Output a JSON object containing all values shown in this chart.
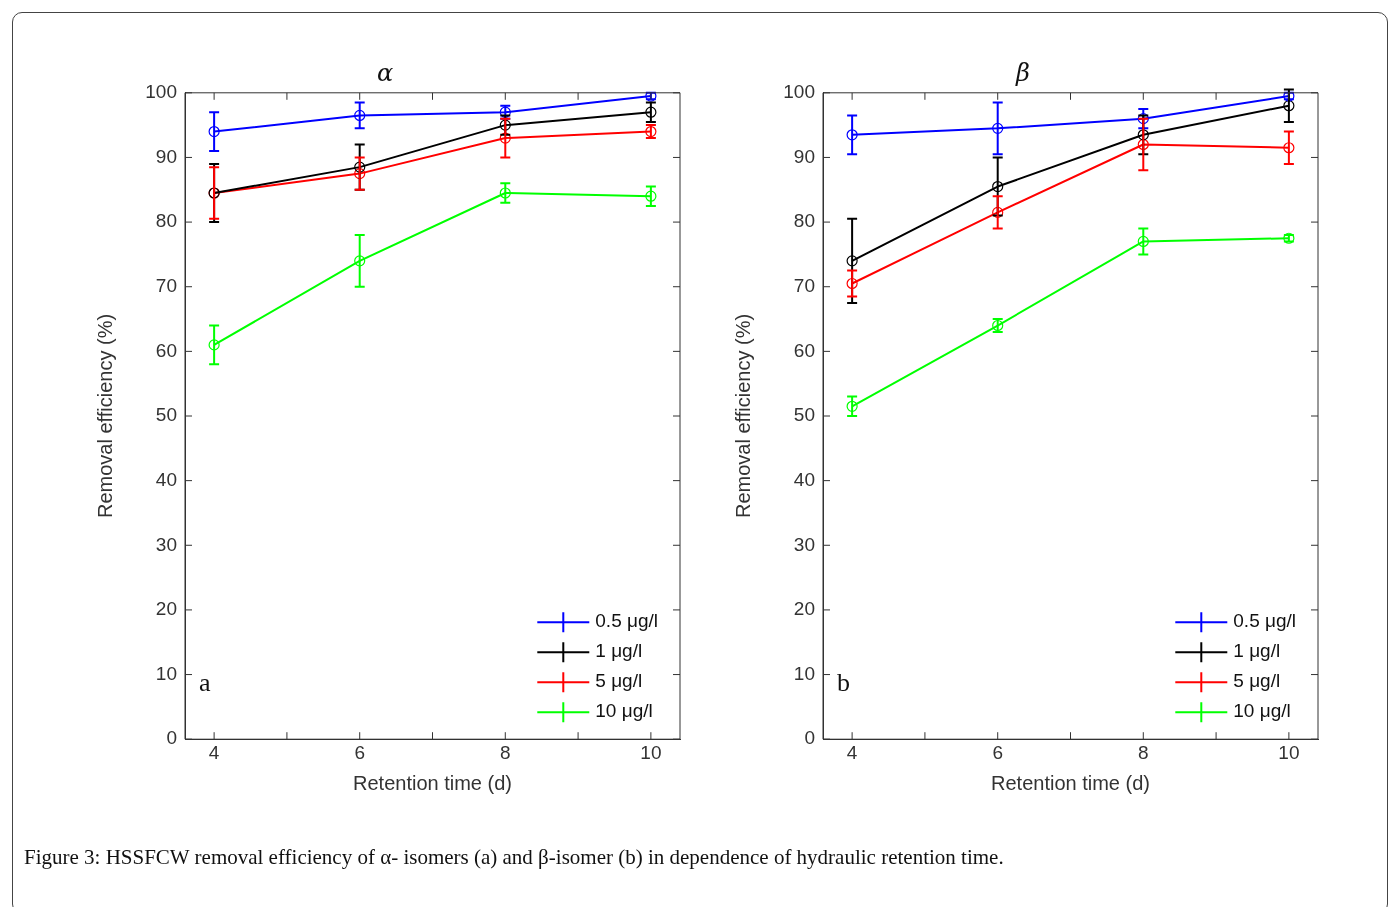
{
  "chart_data": [
    {
      "type": "line",
      "title": "α",
      "xlabel": "Retention time (d)",
      "ylabel": "Removal efficiency (%)",
      "x": [
        4,
        6,
        8,
        10
      ],
      "xlim": [
        3.6,
        10.4
      ],
      "xticks": [
        4,
        {
          "value": 5,
          "label": null
        },
        6,
        {
          "value": 7,
          "label": null
        },
        8,
        {
          "value": 9,
          "label": null
        },
        10
      ],
      "ylim": [
        0,
        100
      ],
      "yticks": [
        0,
        10,
        20,
        30,
        40,
        50,
        60,
        70,
        80,
        90,
        100
      ],
      "grid": false,
      "legend": "bottom right",
      "marker": "circle",
      "line_style": "solid",
      "series": [
        {
          "name": "0.5 μg/l",
          "color": "#0000ff",
          "values": [
            94,
            96.5,
            97,
            99.5
          ],
          "errors": [
            3,
            2,
            1,
            0.5
          ]
        },
        {
          "name": "1 μg/l",
          "color": "#000000",
          "values": [
            84.5,
            88.5,
            95,
            97
          ],
          "errors": [
            4.5,
            3.5,
            1.5,
            1.5
          ]
        },
        {
          "name": "5 μg/l",
          "color": "#ff0000",
          "values": [
            84.5,
            87.5,
            93,
            94
          ],
          "errors": [
            4,
            2.5,
            3,
            1
          ]
        },
        {
          "name": "10 μg/l",
          "color": "#00ff00",
          "values": [
            61,
            74,
            84.5,
            84
          ],
          "errors": [
            3,
            4,
            1.5,
            1.5
          ]
        }
      ],
      "annotations": [
        "a"
      ]
    },
    {
      "type": "line",
      "title": "β",
      "xlabel": "Retention time (d)",
      "ylabel": "Removal efficiency (%)",
      "x": [
        4,
        6,
        8,
        10
      ],
      "xlim": [
        3.6,
        10.4
      ],
      "xticks": [
        4,
        {
          "value": 5,
          "label": null
        },
        6,
        {
          "value": 7,
          "label": null
        },
        8,
        {
          "value": 9,
          "label": null
        },
        10
      ],
      "ylim": [
        0,
        100
      ],
      "yticks": [
        0,
        10,
        20,
        30,
        40,
        50,
        60,
        70,
        80,
        90,
        100
      ],
      "grid": false,
      "legend": "bottom right",
      "marker": "circle",
      "line_style": "solid",
      "series": [
        {
          "name": "0.5 μg/l",
          "color": "#0000ff",
          "values": [
            93.5,
            94.5,
            96,
            99.5
          ],
          "errors": [
            3,
            4,
            1.5,
            0.5
          ]
        },
        {
          "name": "1 μg/l",
          "color": "#000000",
          "values": [
            74,
            85.5,
            93.5,
            98
          ],
          "errors": [
            6.5,
            4.5,
            3,
            2.5
          ]
        },
        {
          "name": "5 μg/l",
          "color": "#ff0000",
          "values": [
            70.5,
            81.5,
            92,
            91.5
          ],
          "errors": [
            2,
            2.5,
            4,
            2.5
          ]
        },
        {
          "name": "10 μg/l",
          "color": "#00ff00",
          "values": [
            51.5,
            64,
            77,
            77.5
          ],
          "errors": [
            1.5,
            1,
            2,
            0.5
          ]
        }
      ],
      "annotations": [
        "b",
        "Figure 3: HSSFCW removal efficiency of α- isomers (a) and β-isomer (b) in dependence of hydraulic retention time."
      ]
    }
  ]
}
